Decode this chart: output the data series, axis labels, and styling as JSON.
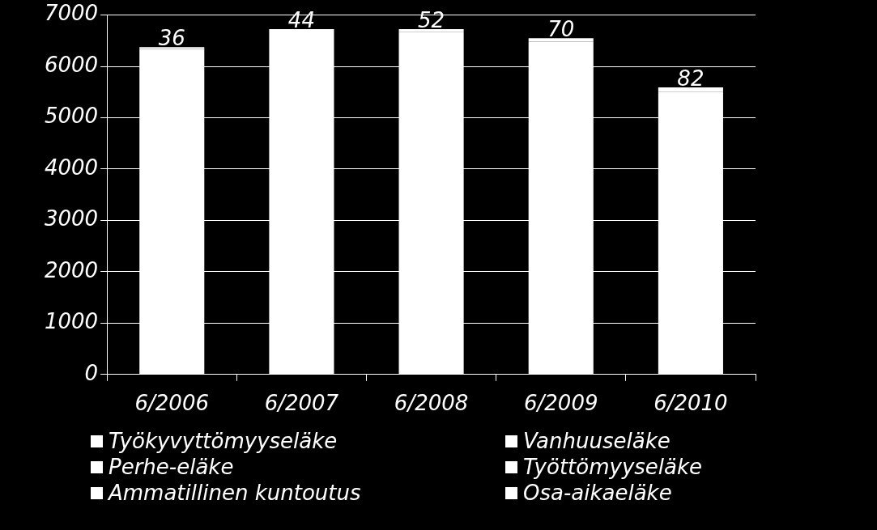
{
  "chart_data": {
    "type": "bar",
    "stacked": true,
    "categories": [
      "6/2006",
      "6/2007",
      "6/2008",
      "6/2009",
      "6/2010"
    ],
    "series": [
      {
        "color": "#ffffff",
        "values": [
          6340,
          6680,
          6675,
          6480,
          5510
        ]
      },
      {
        "name": "Työkyvyttömyyseläke",
        "color": "#ffffff",
        "values": [
          null,
          null,
          null,
          null,
          null
        ]
      },
      {
        "name": "Vanhuuseläke",
        "color": "#ffffff",
        "values": [
          null,
          null,
          null,
          null,
          null
        ]
      },
      {
        "name": "Perhe-eläke",
        "color": "#ffffff",
        "values": [
          null,
          null,
          null,
          null,
          null
        ]
      },
      {
        "name": "Työttömyyseläke",
        "color": "#ffffff",
        "values": [
          null,
          null,
          null,
          null,
          null
        ]
      },
      {
        "name": "Ammatillinen kuntoutus",
        "color": "#ffffff",
        "values": [
          null,
          null,
          null,
          null,
          null
        ]
      },
      {
        "name": "Osa-aikaeläke",
        "color": "#ffffff",
        "values": [
          36,
          44,
          52,
          70,
          82
        ],
        "value_labels": [
          "36",
          "44",
          "52",
          "70",
          "82"
        ]
      }
    ],
    "ylim": [
      0,
      7000
    ],
    "yticks": [
      0,
      1000,
      2000,
      3000,
      4000,
      5000,
      6000,
      7000
    ],
    "grid": "y",
    "legend": "bottom"
  }
}
